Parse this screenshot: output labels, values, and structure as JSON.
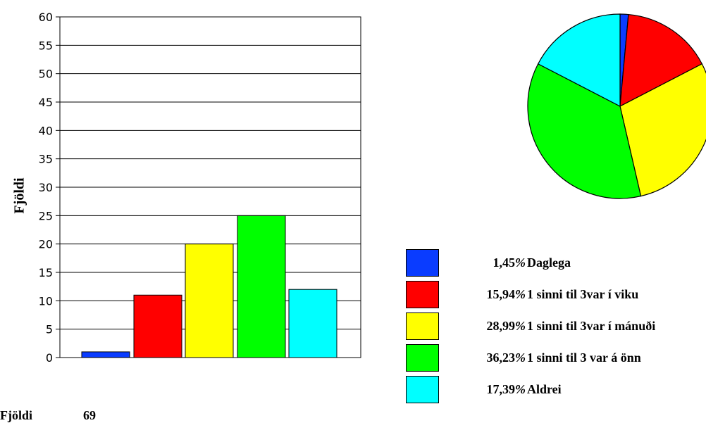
{
  "chart_data": [
    {
      "type": "bar",
      "ylabel": "Fjöldi",
      "ylim": [
        0,
        60
      ],
      "yticks": [
        0,
        5,
        10,
        15,
        20,
        25,
        30,
        35,
        40,
        45,
        50,
        55,
        60
      ],
      "grid": true,
      "values": [
        1,
        11,
        20,
        25,
        12
      ],
      "colors": [
        "#0a3cff",
        "#ff0000",
        "#ffff00",
        "#00ff00",
        "#00ffff"
      ]
    },
    {
      "type": "pie",
      "values": [
        1.45,
        15.94,
        28.99,
        36.23,
        17.39
      ],
      "colors": [
        "#0a3cff",
        "#ff0000",
        "#ffff00",
        "#00ff00",
        "#00ffff"
      ]
    }
  ],
  "legend": [
    {
      "percent": "1,45",
      "pct_sign": "%",
      "label": "Daglega",
      "color": "#0a3cff"
    },
    {
      "percent": "15,94",
      "pct_sign": "%",
      "label": "1 sinni til 3var í viku",
      "color": "#ff0000"
    },
    {
      "percent": "28,99",
      "pct_sign": "%",
      "label": "1 sinni til 3var í mánuði",
      "color": "#ffff00"
    },
    {
      "percent": "36,23",
      "pct_sign": "%",
      "label": "1 sinni til 3 var á önn",
      "color": "#00ff00"
    },
    {
      "percent": "17,39",
      "pct_sign": "%",
      "label": "Aldrei",
      "color": "#00ffff"
    }
  ],
  "total": {
    "label": "Fjöldi",
    "value": "69"
  }
}
